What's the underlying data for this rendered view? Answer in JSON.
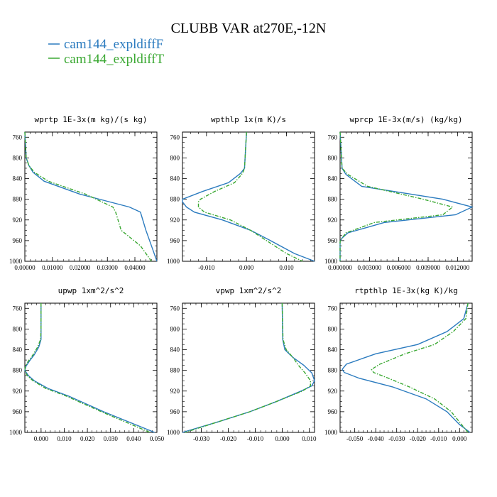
{
  "figure": {
    "title": "CLUBB VAR at270E,-12N",
    "legend": [
      {
        "label": "cam144_expldiffF",
        "color": "#2b7bbf",
        "dash": false
      },
      {
        "label": "cam144_expldiffT",
        "color": "#3aa832",
        "dash": true
      }
    ]
  },
  "chart_data": [
    {
      "type": "line",
      "title": "wprtp  1E-3x(m kg)/(s kg)",
      "xlim": [
        0.0,
        0.048
      ],
      "xticks": [
        0.0,
        0.01,
        0.02,
        0.03,
        0.04
      ],
      "xtick_labels": [
        "0.00000",
        "0.01000",
        "0.02000",
        "0.03000",
        "0.04000"
      ],
      "ylim": [
        750,
        1000
      ],
      "yticks": [
        760,
        800,
        840,
        880,
        920,
        960,
        1000
      ],
      "y": [
        750,
        800,
        815,
        828,
        845,
        870,
        895,
        905,
        940,
        970,
        1000
      ],
      "series": [
        {
          "name": "cam144_expldiffF",
          "color": "#2b7bbf",
          "x": [
            0.0,
            0.0005,
            0.0015,
            0.003,
            0.007,
            0.02,
            0.038,
            0.042,
            0.044,
            0.046,
            0.048
          ]
        },
        {
          "name": "cam144_expldiffT",
          "color": "#3aa832",
          "x": [
            0.0,
            0.0005,
            0.0015,
            0.0035,
            0.0085,
            0.022,
            0.032,
            0.033,
            0.035,
            0.042,
            0.046
          ]
        }
      ]
    },
    {
      "type": "line",
      "title": "wpthlp  1x(m K)/s",
      "xlim": [
        -0.016,
        0.017
      ],
      "xticks": [
        -0.01,
        0.0,
        0.01
      ],
      "xtick_labels": [
        "-0.010",
        "0.000",
        "0.010"
      ],
      "ylim": [
        750,
        1000
      ],
      "yticks": [
        760,
        800,
        840,
        880,
        920,
        960,
        1000
      ],
      "y": [
        750,
        820,
        830,
        848,
        865,
        880,
        885,
        895,
        905,
        920,
        940,
        960,
        985,
        1000
      ],
      "series": [
        {
          "name": "cam144_expldiffF",
          "color": "#2b7bbf",
          "x": [
            0.0,
            -0.0005,
            -0.0015,
            -0.0045,
            -0.011,
            -0.016,
            -0.016,
            -0.015,
            -0.013,
            -0.006,
            0.001,
            0.006,
            0.012,
            0.017
          ]
        },
        {
          "name": "cam144_expldiffT",
          "color": "#3aa832",
          "x": [
            0.0,
            -0.0005,
            -0.001,
            -0.003,
            -0.008,
            -0.0115,
            -0.012,
            -0.012,
            -0.0105,
            -0.004,
            0.001,
            0.005,
            0.01,
            0.014
          ]
        }
      ]
    },
    {
      "type": "line",
      "title": "wprcp  1E-3x(m/s) (kg/kg)",
      "xlim": [
        0.0,
        0.0135
      ],
      "xticks": [
        0.0,
        0.003,
        0.006,
        0.009,
        0.012
      ],
      "xtick_labels": [
        "0.000000",
        "0.003000",
        "0.006000",
        "0.009000",
        "0.012000"
      ],
      "ylim": [
        750,
        1000
      ],
      "yticks": [
        760,
        800,
        840,
        880,
        920,
        960,
        1000
      ],
      "y": [
        750,
        820,
        832,
        855,
        880,
        895,
        910,
        925,
        945,
        955,
        962,
        1000
      ],
      "series": [
        {
          "name": "cam144_expldiffF",
          "color": "#2b7bbf",
          "x": [
            0.0,
            0.0002,
            0.0006,
            0.0022,
            0.0105,
            0.0135,
            0.0118,
            0.0045,
            0.0008,
            0.0002,
            0.0,
            0.0
          ]
        },
        {
          "name": "cam144_expldiffT",
          "color": "#3aa832",
          "x": [
            0.0,
            0.0002,
            0.0008,
            0.0028,
            0.0085,
            0.0115,
            0.0105,
            0.0035,
            0.0006,
            0.0002,
            0.0,
            0.0
          ]
        }
      ]
    },
    {
      "type": "line",
      "title": "upwp  1xm^2/s^2",
      "xlim": [
        -0.007,
        0.05
      ],
      "xticks": [
        0.0,
        0.01,
        0.02,
        0.03,
        0.04,
        0.05
      ],
      "xtick_labels": [
        "0.000",
        "0.010",
        "0.020",
        "0.030",
        "0.040",
        "0.050"
      ],
      "ylim": [
        750,
        1000
      ],
      "yticks": [
        760,
        800,
        840,
        880,
        920,
        960,
        1000
      ],
      "y": [
        750,
        800,
        820,
        835,
        850,
        862,
        872,
        880,
        890,
        900,
        915,
        930,
        960,
        1000
      ],
      "series": [
        {
          "name": "cam144_expldiffF",
          "color": "#2b7bbf",
          "x": [
            0.0,
            0.0,
            0.0,
            -0.001,
            -0.003,
            -0.005,
            -0.0065,
            -0.007,
            -0.0055,
            -0.003,
            0.003,
            0.012,
            0.027,
            0.049
          ]
        },
        {
          "name": "cam144_expldiffT",
          "color": "#3aa832",
          "x": [
            0.0,
            0.0,
            -0.0002,
            -0.0015,
            -0.0035,
            -0.0055,
            -0.0068,
            -0.007,
            -0.006,
            -0.0035,
            0.002,
            0.011,
            0.026,
            0.047
          ]
        }
      ]
    },
    {
      "type": "line",
      "title": "vpwp  1xm^2/s^2",
      "xlim": [
        -0.037,
        0.012
      ],
      "xticks": [
        -0.03,
        -0.02,
        -0.01,
        0.0,
        0.01
      ],
      "xtick_labels": [
        "-0.030",
        "-0.020",
        "-0.010",
        "0.000",
        "0.010"
      ],
      "ylim": [
        750,
        1000
      ],
      "yticks": [
        760,
        800,
        840,
        880,
        920,
        960,
        1000
      ],
      "y": [
        750,
        820,
        840,
        855,
        870,
        885,
        900,
        910,
        920,
        940,
        960,
        980,
        1000
      ],
      "series": [
        {
          "name": "cam144_expldiffF",
          "color": "#2b7bbf",
          "x": [
            0.0,
            0.0002,
            0.001,
            0.004,
            0.008,
            0.011,
            0.012,
            0.011,
            0.007,
            -0.002,
            -0.012,
            -0.024,
            -0.037
          ]
        },
        {
          "name": "cam144_expldiffT",
          "color": "#3aa832",
          "x": [
            0.0,
            0.0003,
            0.0015,
            0.004,
            0.006,
            0.0085,
            0.0105,
            0.0105,
            0.0075,
            -0.002,
            -0.012,
            -0.024,
            -0.036
          ]
        }
      ]
    },
    {
      "type": "line",
      "title": "rtpthlp  1E-3x(kg K)/kg",
      "xlim": [
        -0.057,
        0.006
      ],
      "xticks": [
        -0.05,
        -0.04,
        -0.03,
        -0.02,
        -0.01,
        0.0
      ],
      "xtick_labels": [
        "-0.050",
        "-0.040",
        "-0.030",
        "-0.020",
        "-0.010",
        "0.000"
      ],
      "ylim": [
        750,
        1000
      ],
      "yticks": [
        760,
        800,
        840,
        880,
        920,
        960,
        1000
      ],
      "y": [
        750,
        780,
        805,
        830,
        848,
        868,
        878,
        884,
        895,
        912,
        935,
        960,
        985,
        1000
      ],
      "series": [
        {
          "name": "cam144_expldiffF",
          "color": "#2b7bbf",
          "x": [
            0.004,
            0.002,
            -0.006,
            -0.02,
            -0.04,
            -0.054,
            -0.056,
            -0.055,
            -0.048,
            -0.032,
            -0.016,
            -0.006,
            0.0,
            0.005
          ]
        },
        {
          "name": "cam144_expldiffT",
          "color": "#3aa832",
          "x": [
            0.004,
            0.003,
            -0.003,
            -0.012,
            -0.026,
            -0.038,
            -0.042,
            -0.041,
            -0.034,
            -0.024,
            -0.012,
            -0.004,
            0.001,
            0.004
          ]
        }
      ]
    }
  ]
}
